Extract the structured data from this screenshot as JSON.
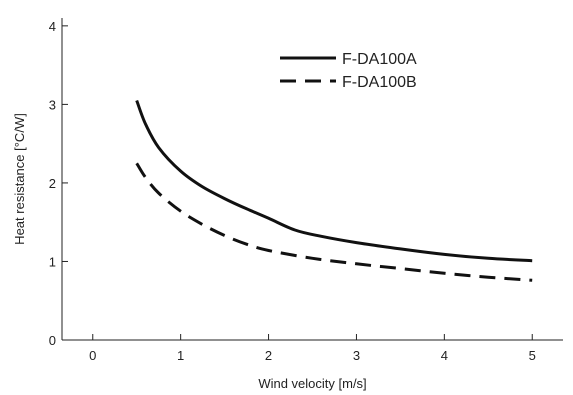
{
  "chart_data": {
    "type": "line",
    "title": "",
    "xlabel": "Wind velocity [m/s]",
    "ylabel": "Heat resistance [°C/W]",
    "xlim": [
      -0.35,
      5.35
    ],
    "ylim": [
      0,
      4.1
    ],
    "xticks": [
      "0",
      "1",
      "2",
      "3",
      "4",
      "5"
    ],
    "yticks": [
      "0",
      "1",
      "2",
      "3",
      "4"
    ],
    "grid": false,
    "legend_position": "top-right",
    "series": [
      {
        "name": "F-DA100A",
        "style": "solid",
        "color": "#111111",
        "x": [
          0.5,
          0.6,
          0.75,
          1.0,
          1.25,
          1.5,
          1.75,
          2.0,
          2.3,
          2.6,
          3.0,
          3.5,
          4.0,
          4.5,
          5.0
        ],
        "y": [
          3.05,
          2.75,
          2.45,
          2.15,
          1.95,
          1.8,
          1.67,
          1.55,
          1.4,
          1.32,
          1.24,
          1.16,
          1.09,
          1.04,
          1.01
        ]
      },
      {
        "name": "F-DA100B",
        "style": "dashed",
        "color": "#111111",
        "x": [
          0.5,
          0.6,
          0.75,
          1.0,
          1.25,
          1.5,
          1.75,
          2.0,
          2.5,
          3.0,
          3.5,
          4.0,
          4.5,
          5.0
        ],
        "y": [
          2.25,
          2.07,
          1.87,
          1.64,
          1.47,
          1.33,
          1.22,
          1.14,
          1.04,
          0.97,
          0.91,
          0.85,
          0.8,
          0.76
        ]
      }
    ]
  }
}
